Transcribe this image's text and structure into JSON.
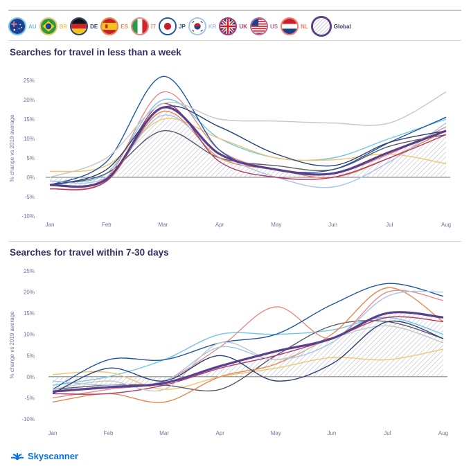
{
  "legend": [
    {
      "code": "AU",
      "color": "#6fc6e8",
      "flag": "au"
    },
    {
      "code": "BR",
      "color": "#f2c56a",
      "flag": "br"
    },
    {
      "code": "DE",
      "color": "#2b3f78",
      "flag": "de"
    },
    {
      "code": "ES",
      "color": "#e8874e",
      "flag": "es"
    },
    {
      "code": "IT",
      "color": "#e88a8a",
      "flag": "it"
    },
    {
      "code": "JP",
      "color": "#1f56a3",
      "flag": "jp"
    },
    {
      "code": "KR",
      "color": "#a8c4e8",
      "flag": "kr"
    },
    {
      "code": "UK",
      "color": "#b4386a",
      "flag": "uk"
    },
    {
      "code": "US",
      "color": "#b66aa0",
      "flag": "us"
    },
    {
      "code": "NL",
      "color": "#ff7a63",
      "flag": "nl"
    },
    {
      "code": "Global",
      "color": "#5a3f8c",
      "flag": "global"
    }
  ],
  "brand": "Skyscanner",
  "chart_data": [
    {
      "type": "line",
      "title": "Searches for travel in less than a week",
      "ylabel": "% change vs 2019 average",
      "categories": [
        "Jan",
        "Feb",
        "Mar",
        "Apr",
        "May",
        "Jun",
        "Jul",
        "Aug"
      ],
      "ylim": [
        -10,
        25
      ],
      "yticks": [
        "25%",
        "20%",
        "15%",
        "10%",
        "5%",
        "0%",
        "-5%",
        "-10%"
      ],
      "series": [
        {
          "name": "AU",
          "color": "#6fc6e8",
          "values": [
            -1,
            1,
            20,
            10,
            5,
            5,
            10,
            15
          ]
        },
        {
          "name": "BR",
          "color": "#f2c56a",
          "values": [
            1.5,
            3,
            15,
            10,
            5,
            4.5,
            6,
            3.5
          ]
        },
        {
          "name": "DE",
          "color": "#5a5a6a",
          "values": [
            -2,
            1,
            12,
            5,
            3,
            2,
            8,
            11
          ]
        },
        {
          "name": "ES",
          "color": "#e8874e",
          "values": [
            -3,
            -1,
            17,
            5,
            2,
            0,
            5,
            12
          ]
        },
        {
          "name": "IT",
          "color": "#e88a8a",
          "values": [
            -2,
            0,
            22,
            7,
            2,
            1,
            6,
            13
          ]
        },
        {
          "name": "JP",
          "color": "#1f56a3",
          "values": [
            -2,
            4,
            26,
            7,
            2,
            2,
            9,
            15.5
          ]
        },
        {
          "name": "KR",
          "color": "#a8c4e8",
          "values": [
            -1,
            0,
            16,
            6,
            0,
            -2.5,
            4,
            14
          ]
        },
        {
          "name": "UK",
          "color": "#b4386a",
          "values": [
            -3,
            -1,
            19,
            4,
            0,
            0,
            5,
            11
          ]
        },
        {
          "name": "US",
          "color": "#c6c6c6",
          "values": [
            0,
            5,
            19,
            15,
            14.5,
            14,
            14,
            22
          ]
        },
        {
          "name": "NL",
          "color": "#2b3f78",
          "values": [
            -2,
            2,
            18,
            13,
            6,
            3,
            9,
            12
          ]
        },
        {
          "name": "Global",
          "color": "#5a3f8c",
          "values": [
            -2,
            -0.5,
            18,
            6,
            2,
            1,
            6.5,
            12
          ]
        }
      ]
    },
    {
      "type": "line",
      "title": "Searches for travel within 7-30 days",
      "ylabel": "% change vs 2019 average",
      "categories": [
        "Jan",
        "Feb",
        "Mar",
        "Apr",
        "May",
        "Jun",
        "Jul",
        "Aug"
      ],
      "ylim": [
        -10,
        25
      ],
      "yticks": [
        "25%",
        "20%",
        "15%",
        "10%",
        "5%",
        "0%",
        "-5%",
        "-10%"
      ],
      "series": [
        {
          "name": "AU",
          "color": "#6fc6e8",
          "values": [
            -2,
            0,
            4,
            10,
            10,
            11,
            14,
            10
          ]
        },
        {
          "name": "BR",
          "color": "#f2c56a",
          "values": [
            0.5,
            1,
            -3,
            0,
            2,
            4.5,
            4,
            6.5
          ]
        },
        {
          "name": "DE",
          "color": "#5a5a6a",
          "values": [
            -3,
            -2,
            -2,
            -3,
            5,
            12,
            13,
            9
          ]
        },
        {
          "name": "ES",
          "color": "#e8874e",
          "values": [
            -6,
            -4,
            -6,
            0,
            3,
            10,
            21,
            13
          ]
        },
        {
          "name": "IT",
          "color": "#e88a8a",
          "values": [
            -5,
            -3,
            -1,
            7,
            16.5,
            9,
            20,
            18
          ]
        },
        {
          "name": "JP",
          "color": "#1f56a3",
          "values": [
            -3,
            4,
            4,
            8,
            10,
            17,
            22,
            19
          ]
        },
        {
          "name": "KR",
          "color": "#a8c4e8",
          "values": [
            -1,
            -2,
            -1,
            7,
            4,
            8,
            19,
            20
          ]
        },
        {
          "name": "UK",
          "color": "#b4386a",
          "values": [
            -4,
            -4,
            -2,
            2,
            5,
            9,
            14,
            13
          ]
        },
        {
          "name": "US",
          "color": "#c6c6c6",
          "values": [
            -3,
            -1,
            -3,
            8,
            4,
            9,
            12,
            8
          ]
        },
        {
          "name": "NL",
          "color": "#2b3f78",
          "values": [
            -4,
            2,
            -1,
            5,
            -1,
            3,
            13,
            9
          ]
        },
        {
          "name": "Global",
          "color": "#5a3f8c",
          "values": [
            -3.5,
            -2.5,
            -1.5,
            2.5,
            6,
            9,
            15,
            14
          ]
        }
      ]
    }
  ]
}
